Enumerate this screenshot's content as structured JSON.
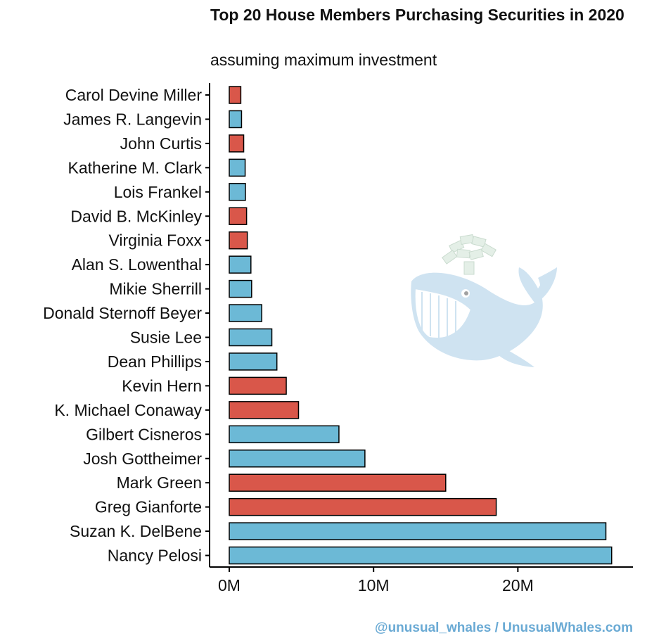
{
  "chart_data": {
    "type": "bar",
    "orientation": "horizontal",
    "title": "Top 20 House Members Purchasing Securities in 2020",
    "subtitle": "assuming maximum investment",
    "xlabel": "",
    "ylabel": "",
    "xlim": [
      0,
      27000000
    ],
    "x_ticks": [
      {
        "value": 0,
        "label": "0M"
      },
      {
        "value": 10000000,
        "label": "10M"
      },
      {
        "value": 20000000,
        "label": "20M"
      }
    ],
    "grid": false,
    "legend": "none",
    "colors": {
      "red": "#d9574a",
      "blue": "#6cb9d6",
      "outline": "#000000"
    },
    "categories": [
      "Carol Devine Miller",
      "James R. Langevin",
      "John Curtis",
      "Katherine M. Clark",
      "Lois Frankel",
      "David B. McKinley",
      "Virginia Foxx",
      "Alan S. Lowenthal",
      "Mikie Sherrill",
      "Donald Sternoff Beyer",
      "Susie Lee",
      "Dean Phillips",
      "Kevin Hern",
      "K. Michael Conaway",
      "Gilbert Cisneros",
      "Josh Gottheimer",
      "Mark Green",
      "Greg Gianforte",
      "Suzan K. DelBene",
      "Nancy Pelosi"
    ],
    "values": [
      800000,
      850000,
      1000000,
      1100000,
      1120000,
      1200000,
      1250000,
      1500000,
      1550000,
      2250000,
      2950000,
      3300000,
      3950000,
      4800000,
      7600000,
      9400000,
      15000000,
      18500000,
      26100000,
      26500000
    ],
    "bar_colors": [
      "red",
      "blue",
      "red",
      "blue",
      "blue",
      "red",
      "red",
      "blue",
      "blue",
      "blue",
      "blue",
      "blue",
      "red",
      "red",
      "blue",
      "blue",
      "red",
      "red",
      "blue",
      "blue"
    ]
  },
  "credit": {
    "text": "@unusual_whales / UnusualWhales.com",
    "color": "#6aaad4"
  },
  "watermark": {
    "icon": "whale-with-money-icon"
  }
}
